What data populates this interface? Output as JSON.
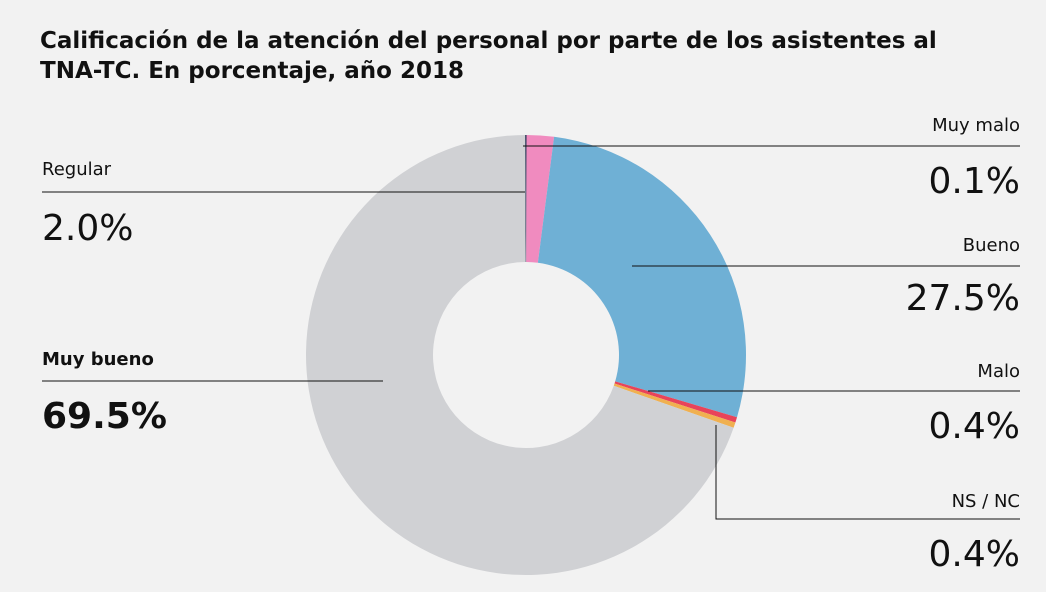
{
  "chart_data": {
    "type": "donut",
    "title": "Calificación de la atención del personal por parte de los asistentes al TNA-TC. En porcentaje, año 2018",
    "categories": [
      "Muy malo",
      "Regular",
      "Bueno",
      "Malo",
      "NS / NC",
      "Muy bueno"
    ],
    "values": [
      0.1,
      2.0,
      27.5,
      0.4,
      0.4,
      69.5
    ],
    "value_labels": [
      "0.1%",
      "2.0%",
      "27.5%",
      "0.4%",
      "0.4%",
      "69.5%"
    ],
    "colors": [
      "#1f3050",
      "#f08bbf",
      "#6fb0d5",
      "#e8445a",
      "#f0b050",
      "#d0d1d4"
    ]
  }
}
